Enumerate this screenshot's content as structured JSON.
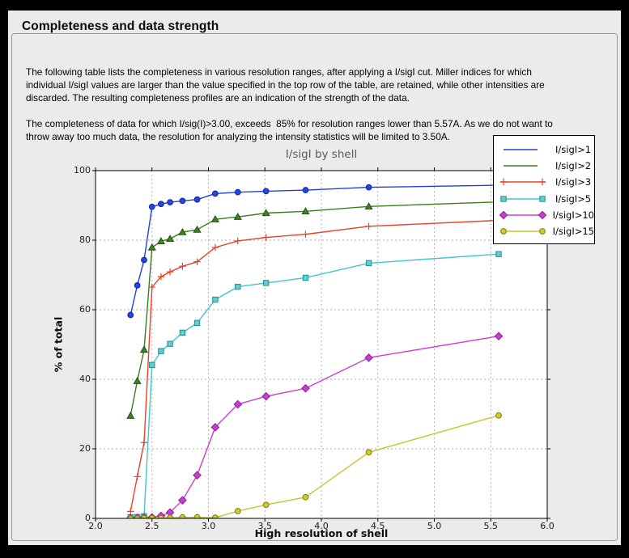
{
  "header": {
    "title": "Completeness and data strength"
  },
  "paragraphs": {
    "p1": "The following table lists the completeness in various resolution ranges, after applying a I/sigI cut. Miller indices for which\nindividual I/sigI values are larger than the value specified in the top row of the table, are retained, while other intensities are\ndiscarded. The resulting completeness profiles are an indication of the strength of the data.",
    "p2": "The completeness of data for which I/sig(I)>3.00, exceeds  85% for resolution ranges lower than 5.57A. As we do not want to\nthrow away too much data, the resolution for analyzing the intensity statistics will be limited to 3.50A."
  },
  "chart_data": {
    "type": "line",
    "title": "I/sigI by shell",
    "xlabel": "High resolution of shell",
    "ylabel": "% of total",
    "xlim": [
      2.0,
      6.0
    ],
    "ylim": [
      0,
      100
    ],
    "x_ticks": [
      2.0,
      2.5,
      3.0,
      3.5,
      4.0,
      4.5,
      5.0,
      5.5,
      6.0
    ],
    "y_ticks": [
      0,
      20,
      40,
      60,
      80,
      100
    ],
    "grid": true,
    "legend_position": "upper-right overlapping plot",
    "plot_bg": "#ffffff",
    "figure_bg": "#ebebeb",
    "x": [
      2.31,
      2.37,
      2.43,
      2.5,
      2.58,
      2.66,
      2.77,
      2.9,
      3.06,
      3.26,
      3.51,
      3.86,
      4.42,
      5.57
    ],
    "series": [
      {
        "name": "I/sigI>1",
        "color": "#2140d8",
        "marker": "circle",
        "marker_fill": "#2546e0",
        "marker_edge": "#13279b",
        "legend_marker": false,
        "values": [
          58.5,
          67,
          74.3,
          89.6,
          90.4,
          90.9,
          91.3,
          91.7,
          93.4,
          93.8,
          94.1,
          94.4,
          95.2,
          95.8
        ]
      },
      {
        "name": "I/sigI>2",
        "color": "#3d7c1e",
        "marker": "triangle",
        "marker_fill": "#3f8227",
        "marker_edge": "#234f12",
        "legend_marker": false,
        "values": [
          29.5,
          39.5,
          48.5,
          77.9,
          79.7,
          80.4,
          82.3,
          83,
          86,
          86.7,
          87.8,
          88.3,
          89.7,
          91
        ]
      },
      {
        "name": "I/sigI>3",
        "color": "#e64228",
        "marker": "plus",
        "marker_fill": "#e64228",
        "marker_edge": "#e64228",
        "legend_marker": true,
        "values": [
          2,
          12,
          21.8,
          66.5,
          69.5,
          70.9,
          72.5,
          73.8,
          77.9,
          79.8,
          80.8,
          81.7,
          84,
          85.7
        ]
      },
      {
        "name": "I/sigI>5",
        "color": "#42c6c8",
        "marker": "square",
        "marker_fill": "#63cdce",
        "marker_edge": "#238d90",
        "legend_marker": true,
        "values": [
          0.3,
          0.4,
          0.6,
          44.1,
          48.1,
          50.2,
          53.4,
          56.2,
          62.9,
          66.6,
          67.7,
          69.2,
          73.4,
          76
        ]
      },
      {
        "name": "I/sigI>10",
        "color": "#cc3ed1",
        "marker": "diamond",
        "marker_fill": "#c93ecf",
        "marker_edge": "#8c1f96",
        "legend_marker": true,
        "values": [
          0.1,
          0.1,
          0.2,
          0.3,
          0.7,
          1.7,
          5.2,
          12.4,
          26.2,
          32.8,
          35.1,
          37.4,
          46.2,
          52.4
        ]
      },
      {
        "name": "I/sigI>15",
        "color": "#c3c62e",
        "marker": "circle",
        "marker_fill": "#d2c92d",
        "marker_edge": "#7d7d14",
        "legend_marker": true,
        "values": [
          0,
          0,
          0.1,
          0.1,
          0.1,
          0.2,
          0.3,
          0.3,
          0.2,
          2.1,
          3.9,
          6.1,
          19,
          29.6
        ]
      }
    ]
  }
}
